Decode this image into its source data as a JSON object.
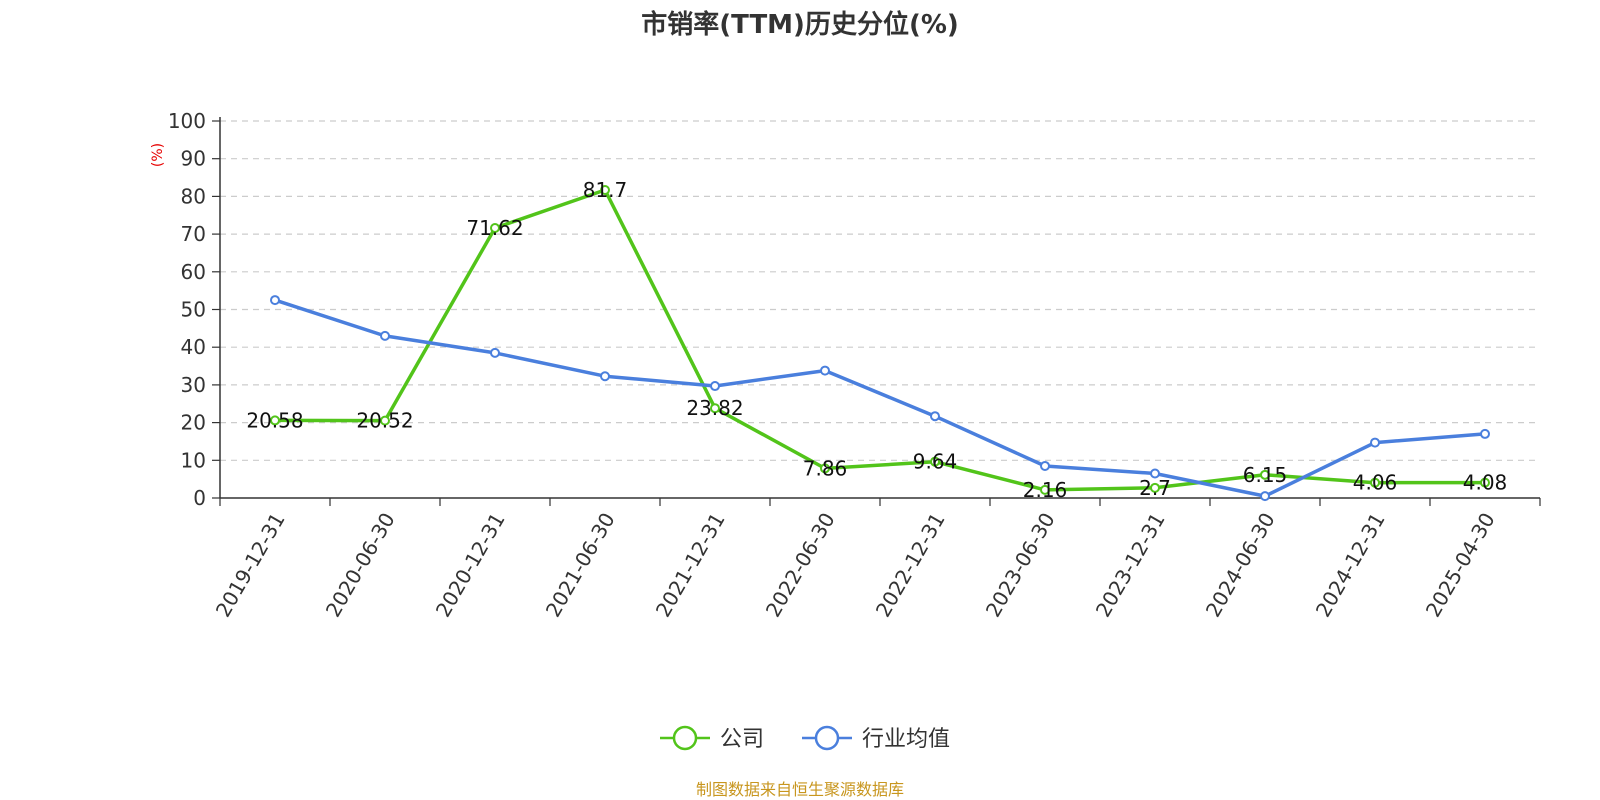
{
  "chart_data": {
    "type": "line",
    "title": "市销率(TTM)历史分位(%)",
    "ylabel": "(%)",
    "xlabel": "",
    "categories": [
      "2019-12-31",
      "2020-06-30",
      "2020-12-31",
      "2021-06-30",
      "2021-12-31",
      "2022-06-30",
      "2022-12-31",
      "2023-06-30",
      "2023-12-31",
      "2024-06-30",
      "2024-12-31",
      "2025-04-30"
    ],
    "ylim": [
      0,
      100
    ],
    "yticks": [
      0,
      10,
      20,
      30,
      40,
      50,
      60,
      70,
      80,
      90,
      100
    ],
    "grid": true,
    "legend_position": "bottom",
    "series": [
      {
        "name": "公司",
        "color": "#52c41a",
        "values": [
          20.58,
          20.52,
          71.62,
          81.7,
          23.82,
          7.86,
          9.64,
          2.16,
          2.7,
          6.15,
          4.06,
          4.08
        ],
        "labels": [
          "20.58",
          "20.52",
          "71.62",
          "81.7",
          "23.82",
          "7.86",
          "9.64",
          "2.16",
          "2.7",
          "6.15",
          "4.06",
          "4.08"
        ]
      },
      {
        "name": "行业均值",
        "color": "#4a7fdd",
        "values": [
          52.5,
          43.0,
          38.5,
          32.3,
          29.7,
          33.8,
          21.7,
          8.5,
          6.5,
          0.5,
          14.7,
          17.0
        ]
      }
    ],
    "source": "制图数据来自恒生聚源数据库"
  }
}
